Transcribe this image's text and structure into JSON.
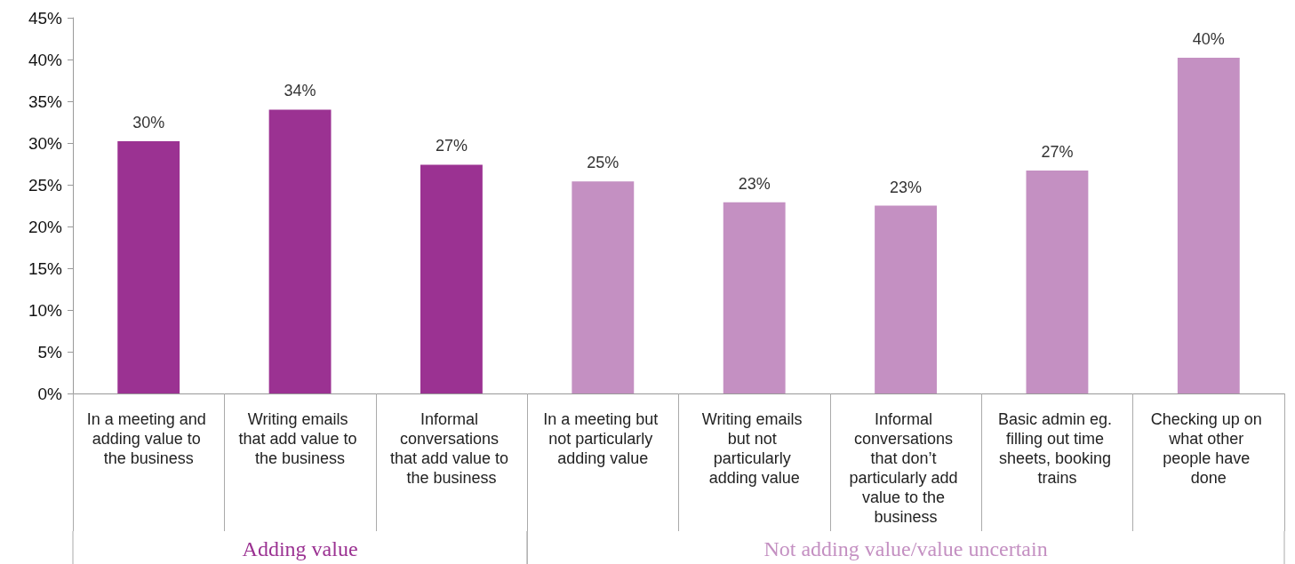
{
  "chart_data": {
    "type": "bar",
    "stacked": true,
    "legend": false,
    "grid": false,
    "categories": [
      "In a meeting and adding value to the business",
      "Writing emails that add value to the business",
      "Informal conversations that add value to the business",
      "In a meeting but not particularly adding value",
      "Writing emails but not particularly adding value",
      "Informal conversations that don’t particularly add value to the business",
      "Basic admin eg. filling out time sheets, booking trains",
      "Checking up on what other people have done"
    ],
    "series": [
      {
        "name": "Adding value",
        "color": "#9b3292",
        "values": [
          30.2,
          34,
          27.4,
          null,
          null,
          null,
          null,
          null
        ],
        "value_labels": [
          "30%",
          "34%",
          "27%",
          null,
          null,
          null,
          null,
          null
        ]
      },
      {
        "name": "Not adding value/value uncertain",
        "color": "#c490c2",
        "values": [
          null,
          null,
          null,
          25.4,
          22.9,
          22.5,
          26.7,
          40.2
        ],
        "value_labels": [
          null,
          null,
          null,
          "25%",
          "23%",
          "23%",
          "27%",
          "40%"
        ]
      }
    ],
    "ylim": [
      0,
      45
    ],
    "yticks": [
      {
        "value": 0,
        "label": "0%"
      },
      {
        "value": 5,
        "label": "5%"
      },
      {
        "value": 10,
        "label": "10%"
      },
      {
        "value": 15,
        "label": "15%"
      },
      {
        "value": 20,
        "label": "20%"
      },
      {
        "value": 25,
        "label": "25%"
      },
      {
        "value": 30,
        "label": "30%"
      },
      {
        "value": 35,
        "label": "35%"
      },
      {
        "value": 40,
        "label": "40%"
      },
      {
        "value": 45,
        "label": "45%"
      }
    ]
  }
}
